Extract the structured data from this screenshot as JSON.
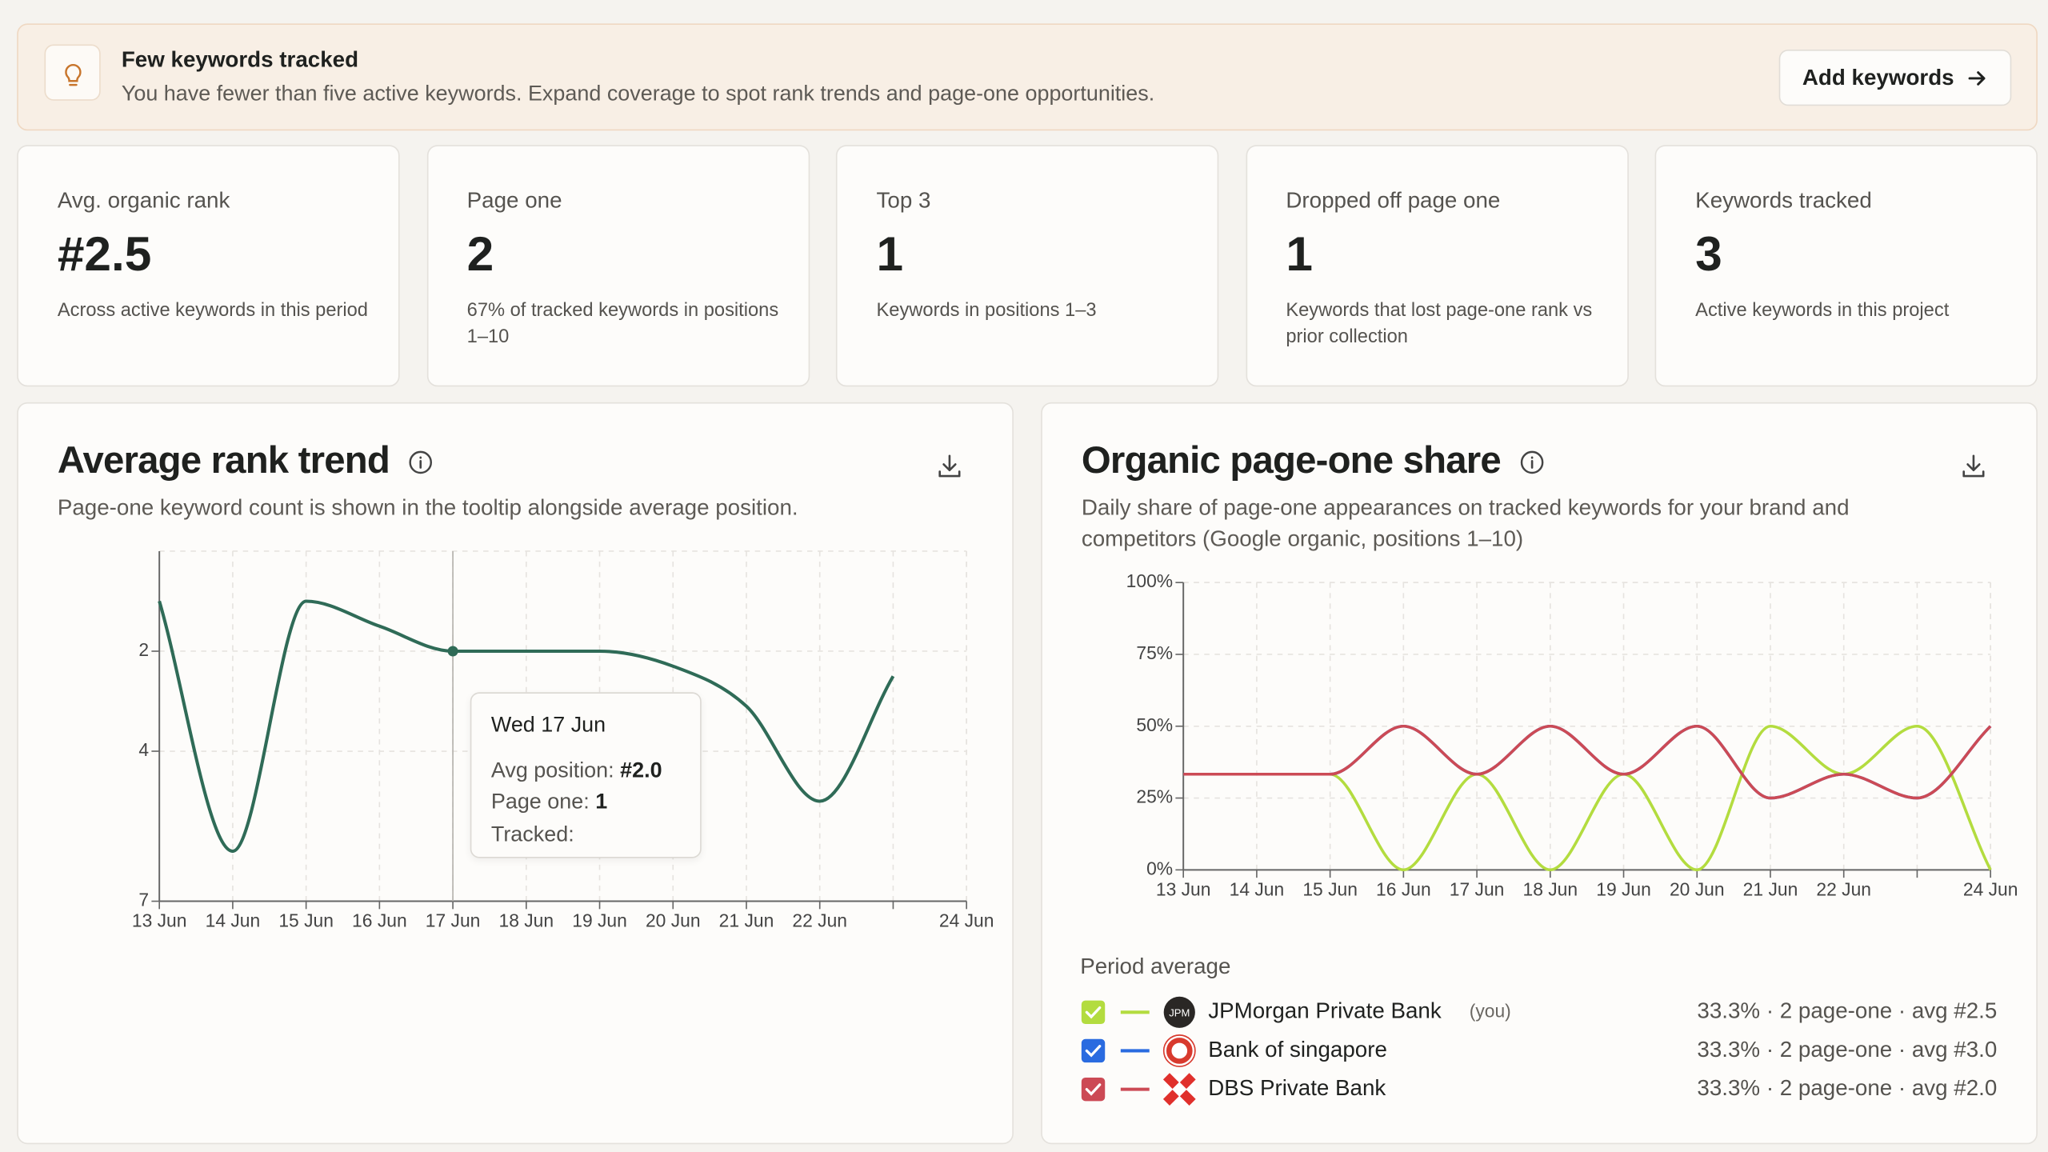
{
  "banner": {
    "title": "Few keywords tracked",
    "message": "You have fewer than five active keywords. Expand coverage to spot rank trends and page-one opportunities.",
    "button": "Add keywords"
  },
  "kpis": [
    {
      "label": "Avg. organic rank",
      "value": "#2.5",
      "note": "Across active keywords in this period"
    },
    {
      "label": "Page one",
      "value": "2",
      "note": "67% of tracked keywords in positions 1–10"
    },
    {
      "label": "Top 3",
      "value": "1",
      "note": "Keywords in positions 1–3"
    },
    {
      "label": "Dropped off page one",
      "value": "1",
      "note": "Keywords that lost page-one rank vs prior collection"
    },
    {
      "label": "Keywords tracked",
      "value": "3",
      "note": "Active keywords in this project"
    }
  ],
  "chart_data": [
    {
      "type": "line",
      "title": "Average rank trend",
      "subtitle": "Page-one keyword count is shown in the tooltip alongside average position.",
      "categories": [
        "13 Jun",
        "14 Jun",
        "15 Jun",
        "16 Jun",
        "17 Jun",
        "18 Jun",
        "19 Jun",
        "20 Jun",
        "21 Jun",
        "22 Jun",
        null,
        "24 Jun"
      ],
      "values": [
        1.0,
        6.0,
        1.0,
        1.5,
        2.0,
        2.0,
        2.0,
        2.3,
        3.1,
        5.0,
        2.5,
        null
      ],
      "color": "#2f6b57",
      "ylim": [
        7,
        0
      ],
      "yticks": [
        2,
        4,
        7
      ],
      "grid": true,
      "tooltip": {
        "title": "Wed 17 Jun",
        "avg_label": "Avg position:",
        "avg_value": "#2.0",
        "page_one_label": "Page one:",
        "page_one_value": "1",
        "tracked_label": "Tracked:"
      }
    },
    {
      "type": "line",
      "title": "Organic page-one share",
      "subtitle": "Daily share of page-one appearances on tracked keywords for your brand and competitors (Google organic, positions 1–10)",
      "categories": [
        "13 Jun",
        "14 Jun",
        "15 Jun",
        "16 Jun",
        "17 Jun",
        "18 Jun",
        "19 Jun",
        "20 Jun",
        "21 Jun",
        "22 Jun",
        null,
        "24 Jun"
      ],
      "series": [
        {
          "name": "JPMorgan Private Bank",
          "tag": "(you)",
          "logo": "JPM",
          "color": "#b3dc3f",
          "summary": "33.3% · 2 page-one · avg #2.5",
          "values": [
            33.3,
            33.3,
            33.3,
            0,
            33.3,
            0,
            33.3,
            0,
            50,
            33.3,
            50,
            0
          ]
        },
        {
          "name": "Bank of singapore",
          "color": "#2a6be0",
          "summary": "33.3% · 2 page-one · avg #3.0",
          "values": [
            33.3,
            33.3,
            33.3,
            50,
            33.3,
            50,
            33.3,
            50,
            25,
            33.3,
            25,
            50
          ]
        },
        {
          "name": "DBS Private Bank",
          "color": "#cc4a55",
          "summary": "33.3% · 2 page-one · avg #2.0",
          "values": [
            33.3,
            33.3,
            33.3,
            50,
            33.3,
            50,
            33.3,
            50,
            25,
            33.3,
            25,
            50
          ]
        }
      ],
      "ylim": [
        0,
        100
      ],
      "yticks": [
        {
          "value": 0,
          "label": "0%"
        },
        {
          "value": 25,
          "label": "25%"
        },
        {
          "value": 50,
          "label": "50%"
        },
        {
          "value": 75,
          "label": "75%"
        },
        {
          "value": 100,
          "label": "100%"
        }
      ],
      "grid": true,
      "legend_title": "Period average"
    }
  ]
}
